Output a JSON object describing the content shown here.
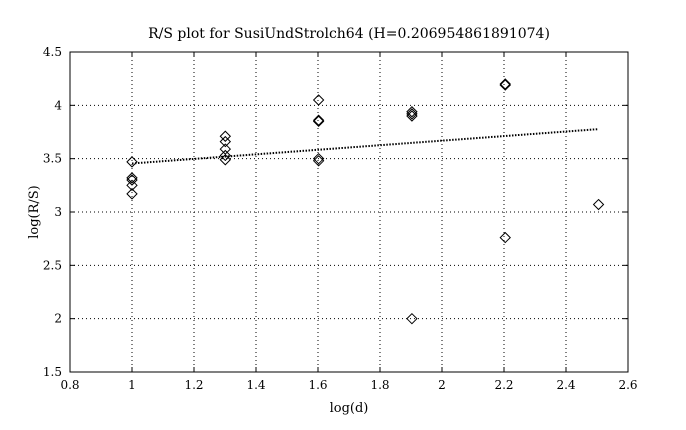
{
  "chart_data": {
    "type": "scatter",
    "title": "R/S plot for SusiUndStrolch64 (H=0.206954861891074)",
    "xlabel": "log(d)",
    "ylabel": "log(R/S)",
    "xlim": [
      0.8,
      2.6
    ],
    "ylim": [
      1.5,
      4.5
    ],
    "xticks": [
      "0.8",
      "1",
      "1.2",
      "1.4",
      "1.6",
      "1.8",
      "2",
      "2.2",
      "2.4",
      "2.6"
    ],
    "yticks": [
      "1.5",
      "2",
      "2.5",
      "3",
      "3.5",
      "4",
      "4.5"
    ],
    "grid": true,
    "marker": "diamond",
    "series": [
      {
        "points": [
          [
            1.0,
            3.47
          ],
          [
            1.0,
            3.32
          ],
          [
            1.0,
            3.3
          ],
          [
            1.0,
            3.25
          ],
          [
            1.0,
            3.17
          ],
          [
            1.301,
            3.71
          ],
          [
            1.301,
            3.66
          ],
          [
            1.301,
            3.59
          ],
          [
            1.301,
            3.53
          ],
          [
            1.301,
            3.49
          ],
          [
            1.602,
            4.05
          ],
          [
            1.602,
            3.86
          ],
          [
            1.602,
            3.85
          ],
          [
            1.602,
            3.5
          ],
          [
            1.602,
            3.48
          ],
          [
            1.903,
            3.94
          ],
          [
            1.903,
            3.92
          ],
          [
            1.903,
            3.9
          ],
          [
            1.903,
            2.0
          ],
          [
            2.204,
            4.2
          ],
          [
            2.204,
            4.19
          ],
          [
            2.204,
            2.76
          ],
          [
            2.505,
            3.07
          ]
        ]
      }
    ],
    "fit_line": {
      "style": "dotted",
      "x": [
        1.0,
        2.505
      ],
      "y": [
        3.455,
        3.777
      ]
    }
  }
}
